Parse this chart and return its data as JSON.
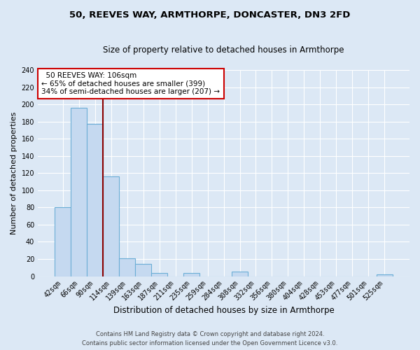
{
  "title": "50, REEVES WAY, ARMTHORPE, DONCASTER, DN3 2FD",
  "subtitle": "Size of property relative to detached houses in Armthorpe",
  "xlabel": "Distribution of detached houses by size in Armthorpe",
  "ylabel": "Number of detached properties",
  "bar_labels": [
    "42sqm",
    "66sqm",
    "90sqm",
    "114sqm",
    "139sqm",
    "163sqm",
    "187sqm",
    "211sqm",
    "235sqm",
    "259sqm",
    "284sqm",
    "308sqm",
    "332sqm",
    "356sqm",
    "380sqm",
    "404sqm",
    "428sqm",
    "453sqm",
    "477sqm",
    "501sqm",
    "525sqm"
  ],
  "bar_values": [
    80,
    196,
    177,
    116,
    21,
    14,
    4,
    0,
    4,
    0,
    0,
    5,
    0,
    0,
    0,
    0,
    0,
    0,
    0,
    0,
    2
  ],
  "bar_color": "#c5d9f0",
  "bar_edge_color": "#6baed6",
  "vline_x": 3.0,
  "vline_color": "#8b0000",
  "annotation_title": "50 REEVES WAY: 106sqm",
  "annotation_line1": "← 65% of detached houses are smaller (399)",
  "annotation_line2": "34% of semi-detached houses are larger (207) →",
  "annotation_box_color": "#ffffff",
  "annotation_box_edge": "#cc0000",
  "ylim": [
    0,
    240
  ],
  "yticks": [
    0,
    20,
    40,
    60,
    80,
    100,
    120,
    140,
    160,
    180,
    200,
    220,
    240
  ],
  "footer_line1": "Contains HM Land Registry data © Crown copyright and database right 2024.",
  "footer_line2": "Contains public sector information licensed under the Open Government Licence v3.0.",
  "bg_color": "#dce8f5",
  "plot_bg_color": "#dce8f5",
  "grid_color": "#ffffff"
}
